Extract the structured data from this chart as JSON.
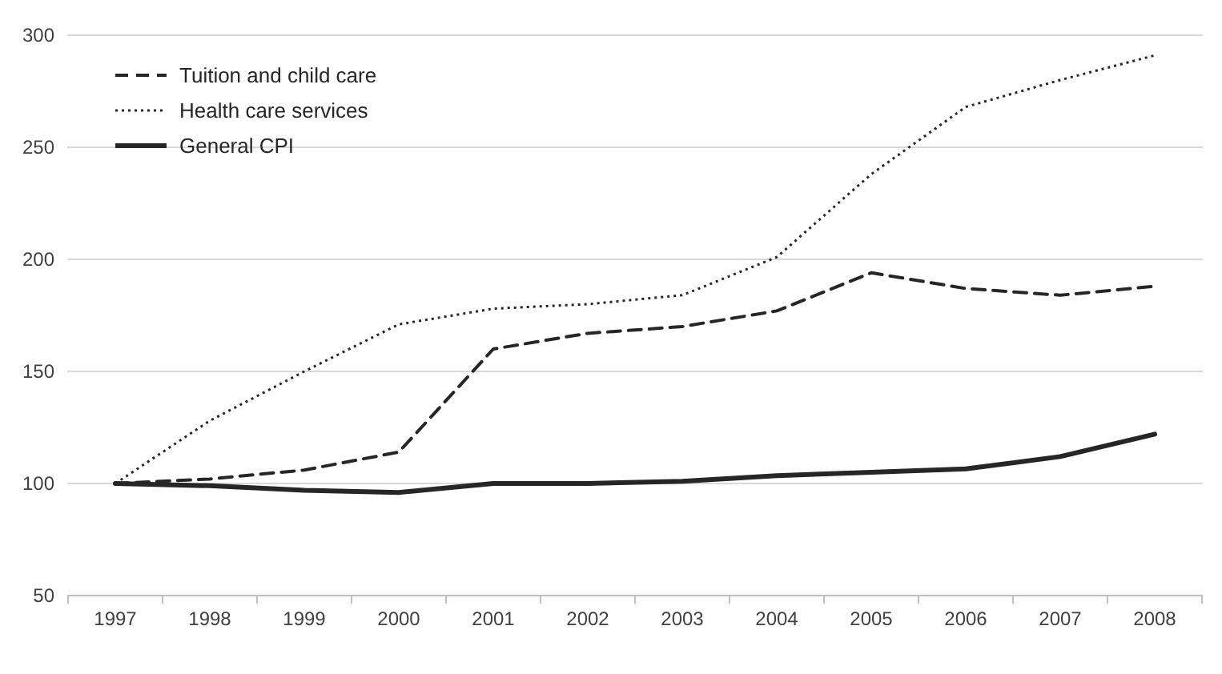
{
  "chart_data": {
    "type": "line",
    "categories": [
      "1997",
      "1998",
      "1999",
      "2000",
      "2001",
      "2002",
      "2003",
      "2004",
      "2005",
      "2006",
      "2007",
      "2008"
    ],
    "series": [
      {
        "name": "Tuition and child care",
        "color": "#262626",
        "line_style": "dashed",
        "values": [
          100,
          102,
          106,
          114,
          160,
          167,
          170,
          177,
          194,
          187,
          184,
          188
        ]
      },
      {
        "name": "Health care services",
        "color": "#262626",
        "line_style": "dotted",
        "values": [
          100,
          128,
          150,
          171,
          178,
          180,
          184,
          201,
          238,
          268,
          280,
          291
        ]
      },
      {
        "name": "General CPI",
        "color": "#262626",
        "line_style": "solid",
        "values": [
          100,
          99,
          97,
          96,
          100,
          100,
          101,
          103.5,
          105,
          106.5,
          112,
          122
        ]
      }
    ],
    "ylim": [
      50,
      300
    ],
    "yticks": [
      50,
      100,
      150,
      200,
      250,
      300
    ],
    "grid": "y",
    "legend": "top left",
    "marker": "none"
  }
}
